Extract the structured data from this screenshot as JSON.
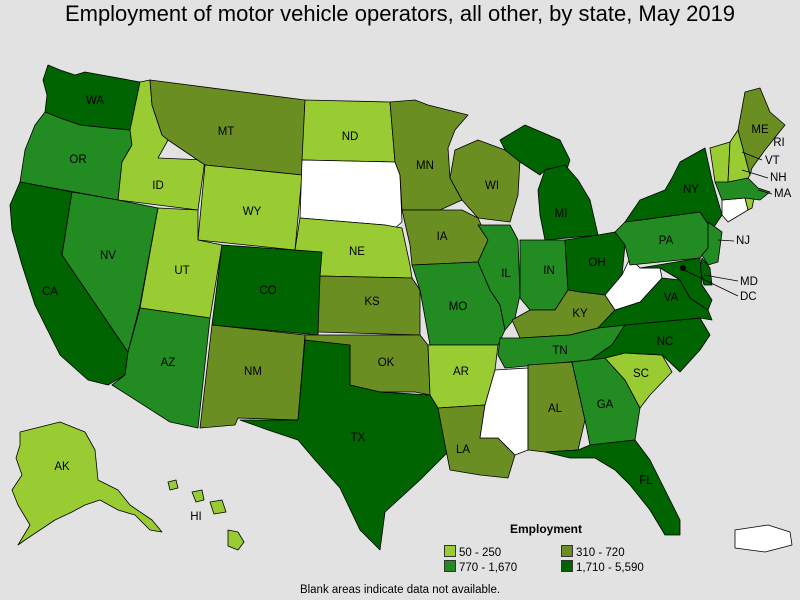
{
  "title": "Employment of motor vehicle operators, all other, by state, May 2019",
  "legend": {
    "title": "Employment",
    "items": [
      {
        "range": "50 - 250",
        "color": "#99cc33"
      },
      {
        "range": "310 - 720",
        "color": "#6b8e23"
      },
      {
        "range": "770 - 1,670",
        "color": "#228b22"
      },
      {
        "range": "1,710 - 5,590",
        "color": "#006400"
      }
    ]
  },
  "note": "Blank areas indicate data not available.",
  "colors": {
    "c1": "#99cc33",
    "c2": "#6b8e23",
    "c3": "#228b22",
    "c4": "#006400",
    "na": "#ffffff",
    "background": "#e2e2e2"
  },
  "states": {
    "WA": {
      "label": "WA",
      "class": 4
    },
    "OR": {
      "label": "OR",
      "class": 3
    },
    "CA": {
      "label": "CA",
      "class": 4
    },
    "ID": {
      "label": "ID",
      "class": 1
    },
    "NV": {
      "label": "NV",
      "class": 3
    },
    "MT": {
      "label": "MT",
      "class": 2
    },
    "WY": {
      "label": "WY",
      "class": 1
    },
    "UT": {
      "label": "UT",
      "class": 1
    },
    "AZ": {
      "label": "AZ",
      "class": 3
    },
    "CO": {
      "label": "CO",
      "class": 4
    },
    "NM": {
      "label": "NM",
      "class": 2
    },
    "ND": {
      "label": "ND",
      "class": 1
    },
    "SD": {
      "label": "",
      "class": 0
    },
    "NE": {
      "label": "NE",
      "class": 1
    },
    "KS": {
      "label": "KS",
      "class": 2
    },
    "OK": {
      "label": "OK",
      "class": 2
    },
    "TX": {
      "label": "TX",
      "class": 4
    },
    "MN": {
      "label": "MN",
      "class": 2
    },
    "IA": {
      "label": "IA",
      "class": 2
    },
    "MO": {
      "label": "MO",
      "class": 3
    },
    "AR": {
      "label": "AR",
      "class": 1
    },
    "LA": {
      "label": "LA",
      "class": 2
    },
    "WI": {
      "label": "WI",
      "class": 2
    },
    "IL": {
      "label": "IL",
      "class": 3
    },
    "MI": {
      "label": "MI",
      "class": 4
    },
    "IN": {
      "label": "IN",
      "class": 3
    },
    "OH": {
      "label": "OH",
      "class": 4
    },
    "KY": {
      "label": "KY",
      "class": 2
    },
    "TN": {
      "label": "TN",
      "class": 3
    },
    "MS": {
      "label": "",
      "class": 0
    },
    "AL": {
      "label": "AL",
      "class": 2
    },
    "GA": {
      "label": "GA",
      "class": 3
    },
    "FL": {
      "label": "FL",
      "class": 4
    },
    "SC": {
      "label": "SC",
      "class": 1
    },
    "NC": {
      "label": "NC",
      "class": 4
    },
    "VA": {
      "label": "VA",
      "class": 4
    },
    "WV": {
      "label": "",
      "class": 0
    },
    "PA": {
      "label": "PA",
      "class": 3
    },
    "NY": {
      "label": "NY",
      "class": 4
    },
    "ME": {
      "label": "ME",
      "class": 2
    },
    "VT": {
      "label": "VT",
      "class": 1
    },
    "NH": {
      "label": "NH",
      "class": 1
    },
    "MA": {
      "label": "MA",
      "class": 3
    },
    "RI": {
      "label": "RI",
      "class": 1
    },
    "CT": {
      "label": "",
      "class": 0
    },
    "NJ": {
      "label": "NJ",
      "class": 3
    },
    "DE": {
      "label": "",
      "class": 4
    },
    "MD": {
      "label": "MD",
      "class": 4
    },
    "DC": {
      "label": "DC",
      "class": 4
    },
    "AK": {
      "label": "AK",
      "class": 1
    },
    "HI": {
      "label": "HI",
      "class": 1
    },
    "PR": {
      "label": "",
      "class": 0
    }
  }
}
